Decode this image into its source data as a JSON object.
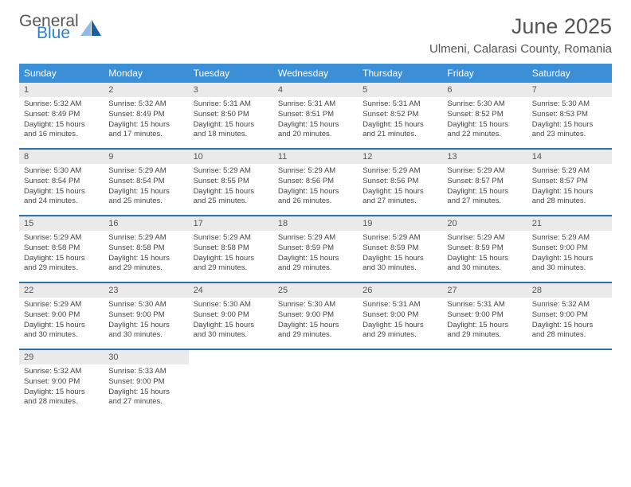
{
  "logo": {
    "word1": "General",
    "word2": "Blue",
    "icon_color": "#2f7fcf"
  },
  "title": "June 2025",
  "location": "Ulmeni, Calarasi County, Romania",
  "colors": {
    "header_bg": "#3b8fd6",
    "header_text": "#ffffff",
    "daynum_bg": "#eaeaea",
    "week_divider": "#2f6fa8",
    "body_text": "#444444",
    "page_bg": "#ffffff"
  },
  "typography": {
    "title_pt": 27,
    "location_pt": 15,
    "weekday_pt": 12,
    "daynum_pt": 11,
    "body_pt": 9.5
  },
  "weekdays": [
    "Sunday",
    "Monday",
    "Tuesday",
    "Wednesday",
    "Thursday",
    "Friday",
    "Saturday"
  ],
  "days": [
    {
      "n": "1",
      "sr": "5:32 AM",
      "ss": "8:49 PM",
      "d1": "15 hours",
      "d2": "and 16 minutes."
    },
    {
      "n": "2",
      "sr": "5:32 AM",
      "ss": "8:49 PM",
      "d1": "15 hours",
      "d2": "and 17 minutes."
    },
    {
      "n": "3",
      "sr": "5:31 AM",
      "ss": "8:50 PM",
      "d1": "15 hours",
      "d2": "and 18 minutes."
    },
    {
      "n": "4",
      "sr": "5:31 AM",
      "ss": "8:51 PM",
      "d1": "15 hours",
      "d2": "and 20 minutes."
    },
    {
      "n": "5",
      "sr": "5:31 AM",
      "ss": "8:52 PM",
      "d1": "15 hours",
      "d2": "and 21 minutes."
    },
    {
      "n": "6",
      "sr": "5:30 AM",
      "ss": "8:52 PM",
      "d1": "15 hours",
      "d2": "and 22 minutes."
    },
    {
      "n": "7",
      "sr": "5:30 AM",
      "ss": "8:53 PM",
      "d1": "15 hours",
      "d2": "and 23 minutes."
    },
    {
      "n": "8",
      "sr": "5:30 AM",
      "ss": "8:54 PM",
      "d1": "15 hours",
      "d2": "and 24 minutes."
    },
    {
      "n": "9",
      "sr": "5:29 AM",
      "ss": "8:54 PM",
      "d1": "15 hours",
      "d2": "and 25 minutes."
    },
    {
      "n": "10",
      "sr": "5:29 AM",
      "ss": "8:55 PM",
      "d1": "15 hours",
      "d2": "and 25 minutes."
    },
    {
      "n": "11",
      "sr": "5:29 AM",
      "ss": "8:56 PM",
      "d1": "15 hours",
      "d2": "and 26 minutes."
    },
    {
      "n": "12",
      "sr": "5:29 AM",
      "ss": "8:56 PM",
      "d1": "15 hours",
      "d2": "and 27 minutes."
    },
    {
      "n": "13",
      "sr": "5:29 AM",
      "ss": "8:57 PM",
      "d1": "15 hours",
      "d2": "and 27 minutes."
    },
    {
      "n": "14",
      "sr": "5:29 AM",
      "ss": "8:57 PM",
      "d1": "15 hours",
      "d2": "and 28 minutes."
    },
    {
      "n": "15",
      "sr": "5:29 AM",
      "ss": "8:58 PM",
      "d1": "15 hours",
      "d2": "and 29 minutes."
    },
    {
      "n": "16",
      "sr": "5:29 AM",
      "ss": "8:58 PM",
      "d1": "15 hours",
      "d2": "and 29 minutes."
    },
    {
      "n": "17",
      "sr": "5:29 AM",
      "ss": "8:58 PM",
      "d1": "15 hours",
      "d2": "and 29 minutes."
    },
    {
      "n": "18",
      "sr": "5:29 AM",
      "ss": "8:59 PM",
      "d1": "15 hours",
      "d2": "and 29 minutes."
    },
    {
      "n": "19",
      "sr": "5:29 AM",
      "ss": "8:59 PM",
      "d1": "15 hours",
      "d2": "and 30 minutes."
    },
    {
      "n": "20",
      "sr": "5:29 AM",
      "ss": "8:59 PM",
      "d1": "15 hours",
      "d2": "and 30 minutes."
    },
    {
      "n": "21",
      "sr": "5:29 AM",
      "ss": "9:00 PM",
      "d1": "15 hours",
      "d2": "and 30 minutes."
    },
    {
      "n": "22",
      "sr": "5:29 AM",
      "ss": "9:00 PM",
      "d1": "15 hours",
      "d2": "and 30 minutes."
    },
    {
      "n": "23",
      "sr": "5:30 AM",
      "ss": "9:00 PM",
      "d1": "15 hours",
      "d2": "and 30 minutes."
    },
    {
      "n": "24",
      "sr": "5:30 AM",
      "ss": "9:00 PM",
      "d1": "15 hours",
      "d2": "and 30 minutes."
    },
    {
      "n": "25",
      "sr": "5:30 AM",
      "ss": "9:00 PM",
      "d1": "15 hours",
      "d2": "and 29 minutes."
    },
    {
      "n": "26",
      "sr": "5:31 AM",
      "ss": "9:00 PM",
      "d1": "15 hours",
      "d2": "and 29 minutes."
    },
    {
      "n": "27",
      "sr": "5:31 AM",
      "ss": "9:00 PM",
      "d1": "15 hours",
      "d2": "and 29 minutes."
    },
    {
      "n": "28",
      "sr": "5:32 AM",
      "ss": "9:00 PM",
      "d1": "15 hours",
      "d2": "and 28 minutes."
    },
    {
      "n": "29",
      "sr": "5:32 AM",
      "ss": "9:00 PM",
      "d1": "15 hours",
      "d2": "and 28 minutes."
    },
    {
      "n": "30",
      "sr": "5:33 AM",
      "ss": "9:00 PM",
      "d1": "15 hours",
      "d2": "and 27 minutes."
    }
  ],
  "labels": {
    "sunrise": "Sunrise: ",
    "sunset": "Sunset: ",
    "daylight": "Daylight: "
  }
}
